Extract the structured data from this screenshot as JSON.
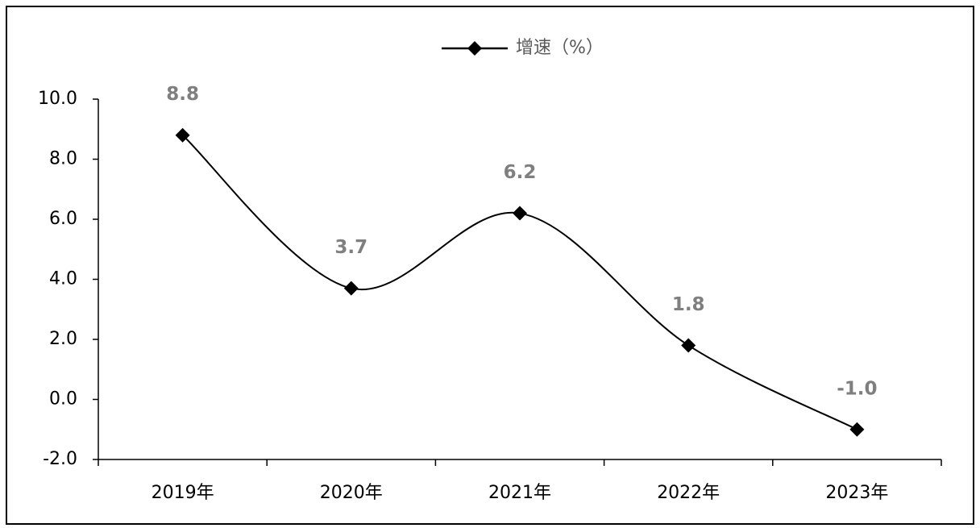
{
  "chart_data": {
    "type": "line",
    "categories": [
      "2019年",
      "2020年",
      "2021年",
      "2022年",
      "2023年"
    ],
    "series": [
      {
        "name": "增速（%）",
        "color": "#000000",
        "values": [
          8.8,
          3.7,
          6.2,
          1.8,
          -1.0
        ],
        "value_labels": [
          "8.8",
          "3.7",
          "6.2",
          "1.8",
          "-1.0"
        ]
      }
    ],
    "ylim": [
      -2,
      10
    ],
    "yticks": [
      {
        "value": -2,
        "label": "-2.0"
      },
      {
        "value": 0,
        "label": "0.0"
      },
      {
        "value": 2,
        "label": "2.0"
      },
      {
        "value": 4,
        "label": "4.0"
      },
      {
        "value": 6,
        "label": "6.0"
      },
      {
        "value": 8,
        "label": "8.0"
      },
      {
        "value": 10,
        "label": "10.0"
      }
    ],
    "smooth": true,
    "grid": false,
    "legend": "top"
  }
}
